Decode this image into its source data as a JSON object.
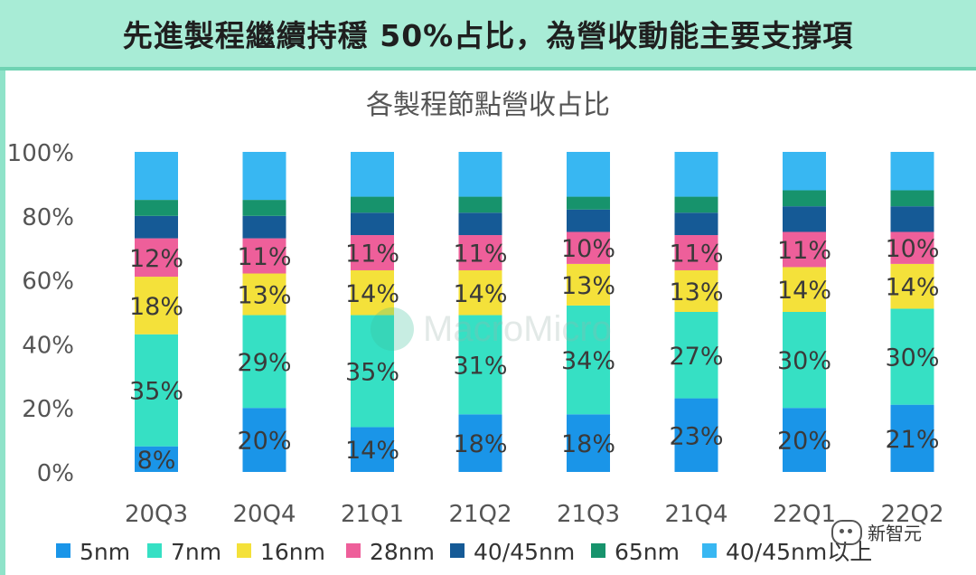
{
  "banner": {
    "title": "先進製程繼續持穩 50%占比，為營收動能主要支撐項"
  },
  "watermark": "MacroMicro",
  "credit": "新智元",
  "colors": {
    "banner_bg": "#a8ecd6",
    "5nm": "#1a95e8",
    "7nm": "#36e0c4",
    "16nm": "#f4e13a",
    "28nm": "#ee5f9a",
    "40/45nm": "#155a96",
    "65nm": "#17936c",
    "40/45nm以上": "#38b7f2"
  },
  "chart_data": {
    "type": "bar",
    "stacked": true,
    "title": "各製程節點營收占比",
    "ylim": [
      0,
      100
    ],
    "yticks": [
      "0%",
      "20%",
      "40%",
      "60%",
      "80%",
      "100%"
    ],
    "categories": [
      "20Q3",
      "20Q4",
      "21Q1",
      "21Q2",
      "21Q3",
      "21Q4",
      "22Q1",
      "22Q2"
    ],
    "legend_position": "bottom",
    "series": [
      {
        "name": "5nm",
        "values": [
          8,
          20,
          14,
          18,
          18,
          23,
          20,
          21
        ],
        "labels": [
          "8%",
          "20%",
          "14%",
          "18%",
          "18%",
          "23%",
          "20%",
          "21%"
        ]
      },
      {
        "name": "7nm",
        "values": [
          35,
          29,
          35,
          31,
          34,
          27,
          30,
          30
        ],
        "labels": [
          "35%",
          "29%",
          "35%",
          "31%",
          "34%",
          "27%",
          "30%",
          "30%"
        ]
      },
      {
        "name": "16nm",
        "values": [
          18,
          13,
          14,
          14,
          13,
          13,
          14,
          14
        ],
        "labels": [
          "18%",
          "13%",
          "14%",
          "14%",
          "13%",
          "13%",
          "14%",
          "14%"
        ]
      },
      {
        "name": "28nm",
        "values": [
          12,
          11,
          11,
          11,
          10,
          11,
          11,
          10
        ],
        "labels": [
          "12%",
          "11%",
          "11%",
          "11%",
          "10%",
          "11%",
          "11%",
          "10%"
        ]
      },
      {
        "name": "40/45nm",
        "values": [
          7,
          7,
          7,
          7,
          7,
          7,
          8,
          8
        ],
        "labels": []
      },
      {
        "name": "65nm",
        "values": [
          5,
          5,
          5,
          5,
          4,
          5,
          5,
          5
        ],
        "labels": []
      },
      {
        "name": "40/45nm以上",
        "values": [
          15,
          15,
          14,
          14,
          14,
          14,
          12,
          12
        ],
        "labels": []
      }
    ]
  }
}
